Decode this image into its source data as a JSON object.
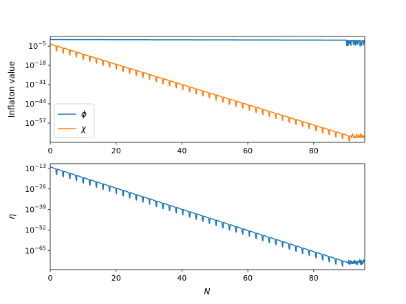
{
  "chart_data": [
    {
      "type": "line",
      "ylabel": "Inflaton value",
      "xlabel": "",
      "yscale": "log",
      "xlim": [
        0,
        95.5
      ],
      "ylim_exp": [
        -70,
        1.5
      ],
      "x_ticks": [
        0,
        20,
        40,
        60,
        80
      ],
      "x_tick_labels": [
        "0",
        "20",
        "40",
        "60",
        "80"
      ],
      "y_ticks_exp": [
        -5,
        -18,
        -31,
        -44,
        -57
      ],
      "y_tick_labels": [
        {
          "base": "10",
          "exp": "−5"
        },
        {
          "base": "10",
          "exp": "−18"
        },
        {
          "base": "10",
          "exp": "−31"
        },
        {
          "base": "10",
          "exp": "−44"
        },
        {
          "base": "10",
          "exp": "−57"
        }
      ],
      "legend": {
        "placement": "lower-left",
        "entries": [
          "ϕ",
          "χ"
        ]
      },
      "series": [
        {
          "name": "ϕ",
          "color": "#1f77b4",
          "log10_start": -0.6,
          "log10_end": -1.0,
          "log10_oscillation_to": -5.0,
          "oscillation_start_x": 90
        },
        {
          "name": "χ",
          "color": "#ff7f0e",
          "log10_start": -3.5,
          "log10_end": -66.0,
          "noise_floor_from_x": 91.5
        }
      ]
    },
    {
      "type": "line",
      "ylabel": "η",
      "xlabel": "N",
      "yscale": "log",
      "xlim": [
        0,
        95.5
      ],
      "ylim_exp": [
        -77,
        -10
      ],
      "x_ticks": [
        0,
        20,
        40,
        60,
        80
      ],
      "x_tick_labels": [
        "0",
        "20",
        "40",
        "60",
        "80"
      ],
      "y_ticks_exp": [
        -13,
        -26,
        -39,
        -52,
        -65
      ],
      "y_tick_labels": [
        {
          "base": "10",
          "exp": "−13"
        },
        {
          "base": "10",
          "exp": "−26"
        },
        {
          "base": "10",
          "exp": "−39"
        },
        {
          "base": "10",
          "exp": "−52"
        },
        {
          "base": "10",
          "exp": "−65"
        }
      ],
      "series": [
        {
          "color": "#1f77b4",
          "log10_start": -12.0,
          "log10_end": -72.5,
          "noise_floor_from_x": 90.5
        }
      ]
    }
  ]
}
